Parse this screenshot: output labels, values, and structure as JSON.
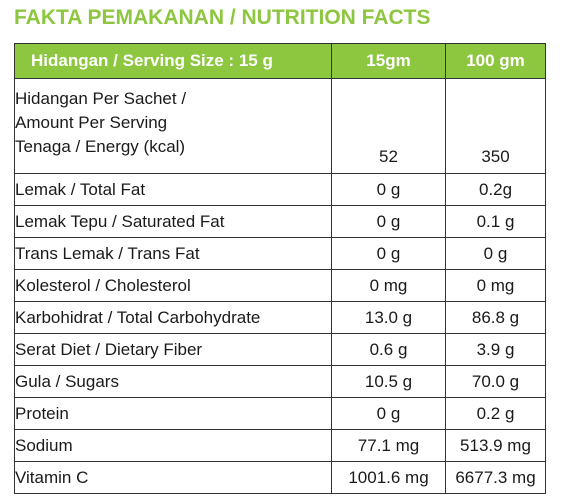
{
  "title": "FAKTA PEMAKANAN / NUTRITION FACTS",
  "colors": {
    "accent": "#8dc63f",
    "border": "#333333",
    "text": "#1a1a1a"
  },
  "header": {
    "serving_size": "Hidangan / Serving Size : 15 g",
    "col_1": "15gm",
    "col_2": "100 gm"
  },
  "energy": {
    "line_1": "Hidangan Per Sachet /",
    "line_2": "Amount Per Serving",
    "line_3": "Tenaga / Energy (kcal)",
    "per_serving": "52",
    "per_100": "350"
  },
  "rows": [
    {
      "label": "Lemak  / Total Fat",
      "per_serving": "0 g",
      "per_100": "0.2g"
    },
    {
      "label": "Lemak Tepu / Saturated Fat",
      "per_serving": "0 g",
      "per_100": "0.1 g"
    },
    {
      "label": "Trans Lemak / Trans Fat",
      "per_serving": "0 g",
      "per_100": "0 g"
    },
    {
      "label": "Kolesterol / Cholesterol",
      "per_serving": "0 mg",
      "per_100": "0 mg"
    },
    {
      "label": "Karbohidrat / Total Carbohydrate",
      "per_serving": "13.0 g",
      "per_100": "86.8 g"
    },
    {
      "label": "Serat Diet / Dietary Fiber",
      "per_serving": "0.6 g",
      "per_100": "3.9 g"
    },
    {
      "label": "Gula / Sugars",
      "per_serving": "10.5 g",
      "per_100": "70.0 g"
    },
    {
      "label": "Protein",
      "per_serving": "0 g",
      "per_100": "0.2 g"
    },
    {
      "label": "Sodium",
      "per_serving": "77.1 mg",
      "per_100": "513.9 mg"
    },
    {
      "label": "Vitamin C",
      "per_serving": "1001.6 mg",
      "per_100": "6677.3 mg"
    }
  ]
}
